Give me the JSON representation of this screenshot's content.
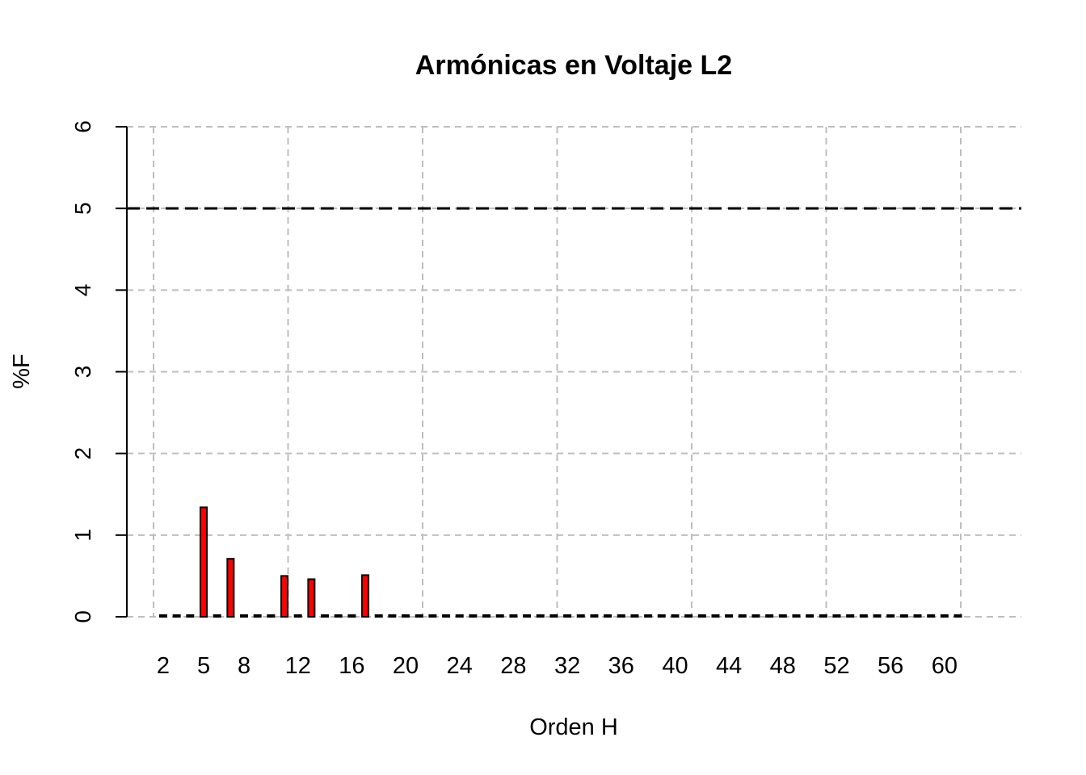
{
  "chart_data": {
    "type": "bar",
    "title": "Armónicas en Voltaje L2",
    "xlabel": "Orden H",
    "ylabel": "%F",
    "ylim": [
      0,
      6
    ],
    "yticks": [
      0,
      1,
      2,
      3,
      4,
      5,
      6
    ],
    "xtick_labels": [
      2,
      5,
      8,
      12,
      16,
      20,
      24,
      28,
      32,
      36,
      40,
      44,
      48,
      52,
      56,
      60
    ],
    "grid": true,
    "limit_line": {
      "y": 5,
      "style": "dashed",
      "color": "#000000"
    },
    "bar_color": "#ff0000",
    "x": [
      2,
      3,
      4,
      5,
      6,
      7,
      8,
      9,
      10,
      11,
      12,
      13,
      14,
      15,
      16,
      17,
      18,
      19,
      20,
      21,
      22,
      23,
      24,
      25,
      26,
      27,
      28,
      29,
      30,
      31,
      32,
      33,
      34,
      35,
      36,
      37,
      38,
      39,
      40,
      41,
      42,
      43,
      44,
      45,
      46,
      47,
      48,
      49,
      50,
      51,
      52,
      53,
      54,
      55,
      56,
      57,
      58,
      59,
      60,
      61
    ],
    "values": [
      0.02,
      0.02,
      0.02,
      1.34,
      0.02,
      0.71,
      0.02,
      0.02,
      0.02,
      0.5,
      0.02,
      0.46,
      0.02,
      0.02,
      0.02,
      0.51,
      0.02,
      0.02,
      0.02,
      0.02,
      0.02,
      0.02,
      0.02,
      0.02,
      0.02,
      0.02,
      0.02,
      0.02,
      0.02,
      0.02,
      0.02,
      0.02,
      0.02,
      0.02,
      0.02,
      0.02,
      0.02,
      0.02,
      0.02,
      0.02,
      0.02,
      0.02,
      0.02,
      0.02,
      0.02,
      0.02,
      0.02,
      0.02,
      0.02,
      0.02,
      0.02,
      0.02,
      0.02,
      0.02,
      0.02,
      0.02,
      0.02,
      0.02,
      0.02,
      0.02
    ]
  }
}
